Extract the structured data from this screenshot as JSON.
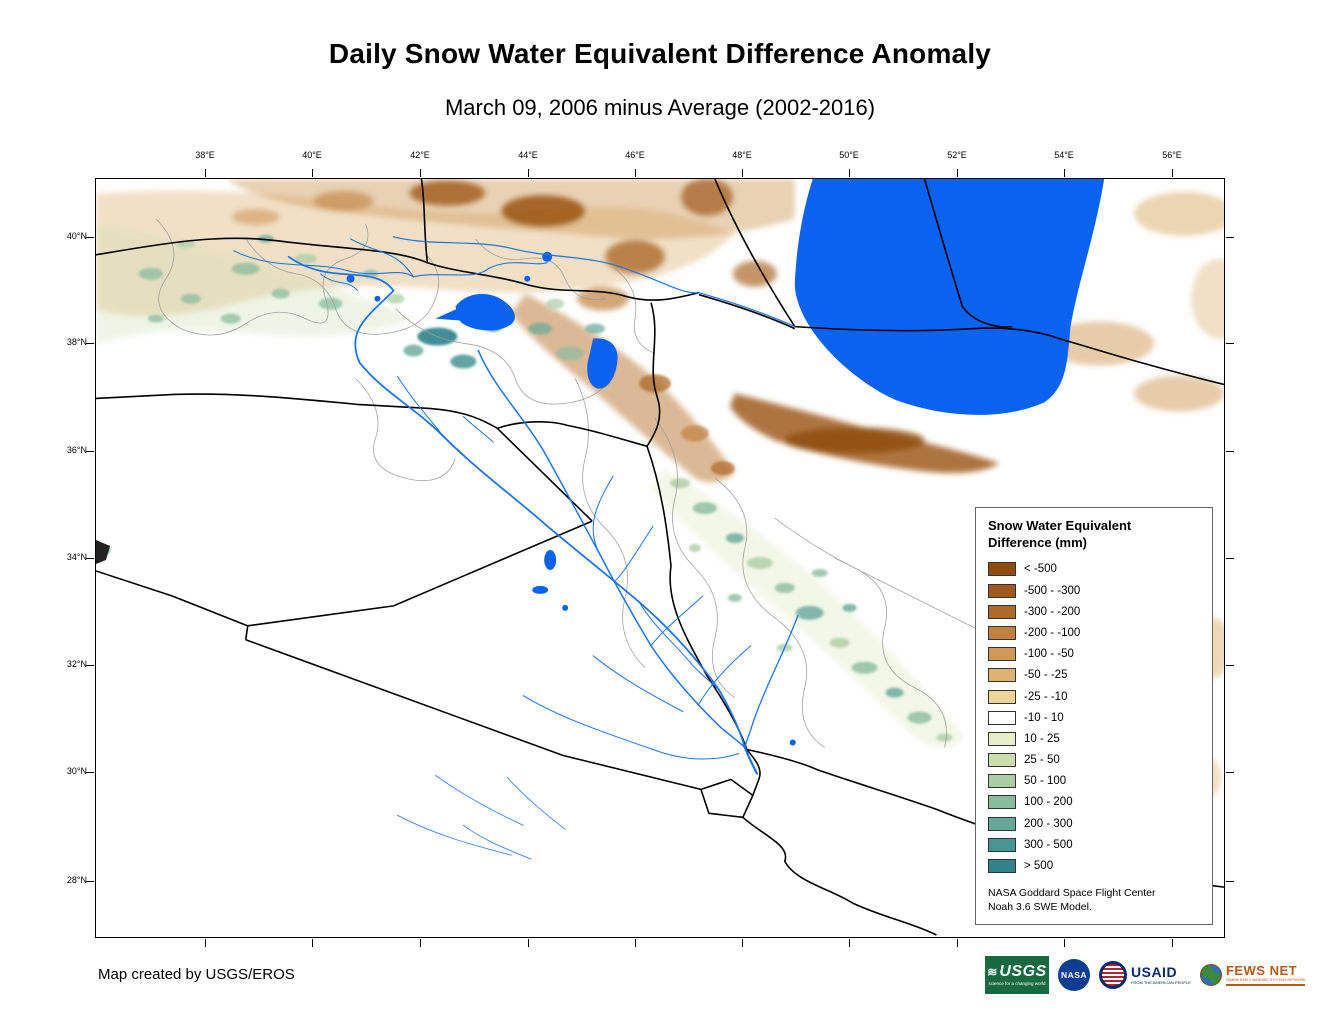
{
  "title": "Daily Snow Water Equivalent Difference Anomaly",
  "subtitle": "March 09, 2006 minus Average (2002-2016)",
  "map": {
    "lon_labels": [
      "38°E",
      "40°E",
      "42°E",
      "44°E",
      "46°E",
      "48°E",
      "50°E",
      "52°E",
      "54°E",
      "56°E"
    ],
    "lat_labels": [
      "40°N",
      "38°N",
      "36°N",
      "34°N",
      "32°N",
      "30°N",
      "28°N"
    ],
    "water_color": "#0a62f0"
  },
  "legend": {
    "title_line1": "Snow Water Equivalent",
    "title_line2": "Difference (mm)",
    "items": [
      {
        "label": "< -500",
        "color": "#8f4d0d"
      },
      {
        "label": "-500 - -300",
        "color": "#a0591c"
      },
      {
        "label": "-300 - -200",
        "color": "#ad6a2a"
      },
      {
        "label": "-200 - -100",
        "color": "#bf8040"
      },
      {
        "label": "-100 - -50",
        "color": "#cf9a57"
      },
      {
        "label": "-50 - -25",
        "color": "#ddb272"
      },
      {
        "label": "-25 - -10",
        "color": "#ecd596"
      },
      {
        "label": "-10 - 10",
        "color": "#ffffff"
      },
      {
        "label": "10 - 25",
        "color": "#e4eec9"
      },
      {
        "label": "25 - 50",
        "color": "#cadfad"
      },
      {
        "label": "50 - 100",
        "color": "#abcda4"
      },
      {
        "label": "100 - 200",
        "color": "#8bbb9d"
      },
      {
        "label": "200 - 300",
        "color": "#67a898"
      },
      {
        "label": "300 - 500",
        "color": "#479692"
      },
      {
        "label": "> 500",
        "color": "#2f8389"
      }
    ],
    "source_line1": "NASA Goddard Space Flight Center",
    "source_line2": "Noah 3.6 SWE Model."
  },
  "footer": {
    "credit": "Map created by USGS/EROS",
    "logos": {
      "usgs": {
        "label": "USGS",
        "tagline": "science for a changing world"
      },
      "nasa": {
        "label": "NASA"
      },
      "usaid": {
        "label": "USAID",
        "tagline": "FROM THE AMERICAN PEOPLE"
      },
      "fewsnet": {
        "label": "FEWS NET",
        "tagline": "FAMINE EARLY WARNING SYSTEMS NETWORK"
      }
    }
  }
}
